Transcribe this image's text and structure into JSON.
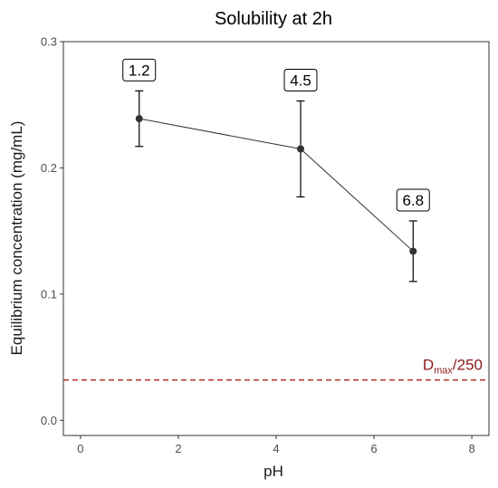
{
  "chart_data": {
    "type": "line",
    "title": "Solubility at 2h",
    "xlabel": "pH",
    "ylabel": "Equilibrium concentration (mg/mL)",
    "xlim": [
      -0.35,
      8.35
    ],
    "ylim": [
      -0.012,
      0.3
    ],
    "xticks": [
      0,
      2,
      4,
      6,
      8
    ],
    "yticks": [
      0.0,
      0.1,
      0.2,
      0.3
    ],
    "xtick_labels": [
      "0",
      "2",
      "4",
      "6",
      "8"
    ],
    "ytick_labels": [
      "0.0",
      "0.1",
      "0.2",
      "0.3"
    ],
    "grid": false,
    "series": [
      {
        "x": [
          1.2,
          4.5,
          6.8
        ],
        "y": [
          0.239,
          0.215,
          0.134
        ],
        "err_low": [
          0.217,
          0.177,
          0.11
        ],
        "err_high": [
          0.261,
          0.253,
          0.158
        ],
        "point_labels": [
          "1.2",
          "4.5",
          "6.8"
        ],
        "color": "#333333"
      }
    ],
    "reference_line": {
      "y": 0.032,
      "style": "dashed",
      "color": "#b22222",
      "label_main": "D",
      "label_sub": "max",
      "label_tail": "/250"
    }
  }
}
